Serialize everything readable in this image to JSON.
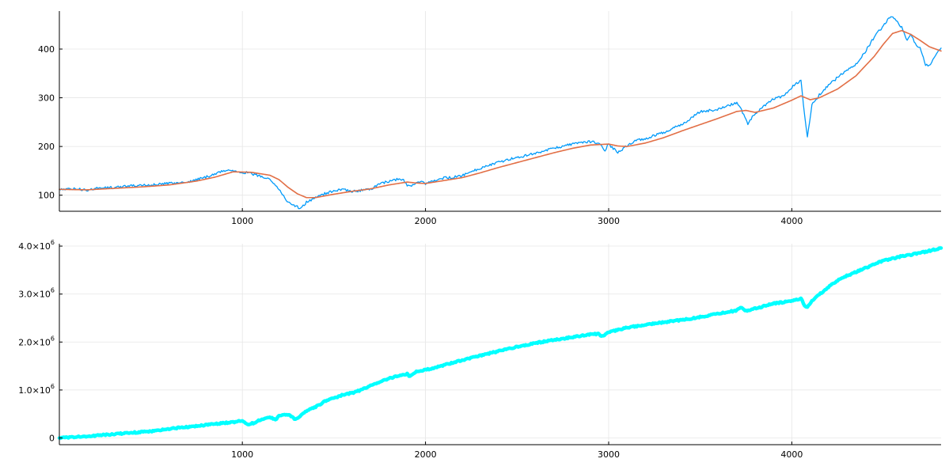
{
  "chart_data": [
    {
      "type": "line",
      "title": "",
      "xlabel": "",
      "ylabel": "",
      "xlim": [
        1,
        4815
      ],
      "ylim": [
        67,
        478
      ],
      "grid": true,
      "legend": "none",
      "x_ticks": [
        1000,
        2000,
        3000,
        4000
      ],
      "x_tick_labels": [
        "1000",
        "2000",
        "3000",
        "4000"
      ],
      "y_ticks": [
        100,
        200,
        300,
        400
      ],
      "y_tick_labels": [
        "100",
        "200",
        "300",
        "400"
      ],
      "series": [
        {
          "color": "#009AFA",
          "stroke_width": 1.3,
          "noise": 1.6,
          "points": [
            [
              1,
              112
            ],
            [
              100,
              113
            ],
            [
              150,
              110
            ],
            [
              200,
              114
            ],
            [
              300,
              116
            ],
            [
              400,
              119
            ],
            [
              500,
              121
            ],
            [
              600,
              124
            ],
            [
              700,
              127
            ],
            [
              800,
              137
            ],
            [
              880,
              148
            ],
            [
              930,
              152
            ],
            [
              970,
              149
            ],
            [
              1010,
              147
            ],
            [
              1060,
              143
            ],
            [
              1100,
              139
            ],
            [
              1150,
              134
            ],
            [
              1200,
              112
            ],
            [
              1250,
              85
            ],
            [
              1300,
              76
            ],
            [
              1320,
              72
            ],
            [
              1350,
              86
            ],
            [
              1400,
              94
            ],
            [
              1450,
              103
            ],
            [
              1500,
              109
            ],
            [
              1550,
              113
            ],
            [
              1600,
              107
            ],
            [
              1650,
              110
            ],
            [
              1700,
              113
            ],
            [
              1750,
              122
            ],
            [
              1800,
              129
            ],
            [
              1850,
              133
            ],
            [
              1880,
              133
            ],
            [
              1900,
              118
            ],
            [
              1930,
              120
            ],
            [
              1960,
              128
            ],
            [
              2000,
              124
            ],
            [
              2050,
              129
            ],
            [
              2100,
              135
            ],
            [
              2150,
              137
            ],
            [
              2200,
              140
            ],
            [
              2300,
              156
            ],
            [
              2400,
              168
            ],
            [
              2500,
              178
            ],
            [
              2600,
              186
            ],
            [
              2700,
              196
            ],
            [
              2800,
              205
            ],
            [
              2900,
              210
            ],
            [
              2950,
              207
            ],
            [
              2980,
              192
            ],
            [
              3000,
              205
            ],
            [
              3050,
              188
            ],
            [
              3080,
              196
            ],
            [
              3150,
              213
            ],
            [
              3200,
              216
            ],
            [
              3300,
              229
            ],
            [
              3400,
              245
            ],
            [
              3450,
              258
            ],
            [
              3500,
              272
            ],
            [
              3550,
              274
            ],
            [
              3600,
              276
            ],
            [
              3700,
              290
            ],
            [
              3720,
              278
            ],
            [
              3760,
              247
            ],
            [
              3790,
              264
            ],
            [
              3850,
              284
            ],
            [
              3900,
              297
            ],
            [
              3950,
              303
            ],
            [
              4000,
              322
            ],
            [
              4050,
              337
            ],
            [
              4070,
              262
            ],
            [
              4085,
              222
            ],
            [
              4110,
              285
            ],
            [
              4150,
              306
            ],
            [
              4200,
              325
            ],
            [
              4250,
              342
            ],
            [
              4300,
              356
            ],
            [
              4350,
              368
            ],
            [
              4400,
              394
            ],
            [
              4450,
              425
            ],
            [
              4500,
              448
            ],
            [
              4540,
              468
            ],
            [
              4570,
              458
            ],
            [
              4600,
              445
            ],
            [
              4630,
              416
            ],
            [
              4650,
              430
            ],
            [
              4680,
              408
            ],
            [
              4700,
              403
            ],
            [
              4730,
              368
            ],
            [
              4750,
              365
            ],
            [
              4770,
              378
            ],
            [
              4790,
              392
            ],
            [
              4815,
              402
            ]
          ]
        },
        {
          "color": "#E26F46",
          "stroke_width": 1.6,
          "noise": 0,
          "points": [
            [
              1,
              112
            ],
            [
              150,
              111
            ],
            [
              300,
              114
            ],
            [
              450,
              117
            ],
            [
              600,
              121
            ],
            [
              750,
              129
            ],
            [
              850,
              137
            ],
            [
              950,
              148
            ],
            [
              1050,
              147
            ],
            [
              1150,
              141
            ],
            [
              1200,
              132
            ],
            [
              1250,
              116
            ],
            [
              1300,
              103
            ],
            [
              1350,
              95
            ],
            [
              1400,
              95
            ],
            [
              1500,
              102
            ],
            [
              1600,
              108
            ],
            [
              1700,
              113
            ],
            [
              1800,
              121
            ],
            [
              1900,
              127
            ],
            [
              1950,
              125
            ],
            [
              2000,
              124
            ],
            [
              2100,
              130
            ],
            [
              2200,
              136
            ],
            [
              2300,
              146
            ],
            [
              2400,
              157
            ],
            [
              2500,
              167
            ],
            [
              2600,
              177
            ],
            [
              2700,
              187
            ],
            [
              2800,
              196
            ],
            [
              2900,
              203
            ],
            [
              3000,
              205
            ],
            [
              3050,
              201
            ],
            [
              3100,
              200
            ],
            [
              3200,
              207
            ],
            [
              3300,
              218
            ],
            [
              3400,
              232
            ],
            [
              3500,
              245
            ],
            [
              3600,
              258
            ],
            [
              3700,
              272
            ],
            [
              3750,
              274
            ],
            [
              3800,
              270
            ],
            [
              3900,
              279
            ],
            [
              4000,
              295
            ],
            [
              4050,
              304
            ],
            [
              4100,
              296
            ],
            [
              4150,
              300
            ],
            [
              4250,
              318
            ],
            [
              4350,
              345
            ],
            [
              4450,
              385
            ],
            [
              4500,
              410
            ],
            [
              4550,
              432
            ],
            [
              4600,
              438
            ],
            [
              4650,
              430
            ],
            [
              4700,
              418
            ],
            [
              4750,
              405
            ],
            [
              4815,
              396
            ]
          ]
        }
      ]
    },
    {
      "type": "line",
      "title": "",
      "xlabel": "",
      "ylabel": "",
      "xlim": [
        1,
        4815
      ],
      "ylim": [
        -140000,
        4050000
      ],
      "grid": true,
      "legend": "none",
      "x_ticks": [
        1000,
        2000,
        3000,
        4000
      ],
      "x_tick_labels": [
        "1000",
        "2000",
        "3000",
        "4000"
      ],
      "y_ticks": [
        0,
        1000000,
        2000000,
        3000000,
        4000000
      ],
      "y_tick_labels": [
        {
          "base": "0",
          "exp": ""
        },
        {
          "base": "1.0×10",
          "exp": "6"
        },
        {
          "base": "2.0×10",
          "exp": "6"
        },
        {
          "base": "3.0×10",
          "exp": "6"
        },
        {
          "base": "4.0×10",
          "exp": "6"
        }
      ],
      "series": [
        {
          "color": "#00FFFF",
          "stroke_width": 4.5,
          "noise": 0.9,
          "points": [
            [
              1,
              0
            ],
            [
              100,
              20000
            ],
            [
              200,
              50000
            ],
            [
              300,
              80000
            ],
            [
              400,
              110000
            ],
            [
              500,
              140000
            ],
            [
              600,
              190000
            ],
            [
              700,
              230000
            ],
            [
              800,
              270000
            ],
            [
              900,
              310000
            ],
            [
              950,
              330000
            ],
            [
              1000,
              360000
            ],
            [
              1030,
              280000
            ],
            [
              1060,
              310000
            ],
            [
              1100,
              380000
            ],
            [
              1150,
              440000
            ],
            [
              1180,
              380000
            ],
            [
              1200,
              460000
            ],
            [
              1230,
              500000
            ],
            [
              1260,
              470000
            ],
            [
              1290,
              380000
            ],
            [
              1310,
              440000
            ],
            [
              1350,
              560000
            ],
            [
              1400,
              650000
            ],
            [
              1450,
              760000
            ],
            [
              1500,
              830000
            ],
            [
              1550,
              900000
            ],
            [
              1600,
              940000
            ],
            [
              1650,
              1000000
            ],
            [
              1700,
              1100000
            ],
            [
              1750,
              1170000
            ],
            [
              1800,
              1240000
            ],
            [
              1850,
              1290000
            ],
            [
              1900,
              1340000
            ],
            [
              1910,
              1280000
            ],
            [
              1950,
              1380000
            ],
            [
              2000,
              1420000
            ],
            [
              2050,
              1460000
            ],
            [
              2100,
              1520000
            ],
            [
              2200,
              1620000
            ],
            [
              2300,
              1720000
            ],
            [
              2400,
              1810000
            ],
            [
              2500,
              1900000
            ],
            [
              2600,
              1980000
            ],
            [
              2700,
              2040000
            ],
            [
              2800,
              2100000
            ],
            [
              2900,
              2160000
            ],
            [
              2950,
              2170000
            ],
            [
              2960,
              2110000
            ],
            [
              3000,
              2200000
            ],
            [
              3100,
              2300000
            ],
            [
              3200,
              2360000
            ],
            [
              3300,
              2410000
            ],
            [
              3400,
              2460000
            ],
            [
              3500,
              2520000
            ],
            [
              3600,
              2590000
            ],
            [
              3700,
              2660000
            ],
            [
              3720,
              2730000
            ],
            [
              3750,
              2650000
            ],
            [
              3800,
              2700000
            ],
            [
              3900,
              2800000
            ],
            [
              4000,
              2860000
            ],
            [
              4050,
              2910000
            ],
            [
              4070,
              2760000
            ],
            [
              4085,
              2720000
            ],
            [
              4110,
              2850000
            ],
            [
              4150,
              2990000
            ],
            [
              4200,
              3150000
            ],
            [
              4250,
              3280000
            ],
            [
              4300,
              3380000
            ],
            [
              4350,
              3460000
            ],
            [
              4400,
              3540000
            ],
            [
              4450,
              3620000
            ],
            [
              4500,
              3700000
            ],
            [
              4550,
              3740000
            ],
            [
              4600,
              3790000
            ],
            [
              4650,
              3820000
            ],
            [
              4700,
              3860000
            ],
            [
              4750,
              3900000
            ],
            [
              4815,
              3960000
            ]
          ]
        }
      ]
    }
  ]
}
